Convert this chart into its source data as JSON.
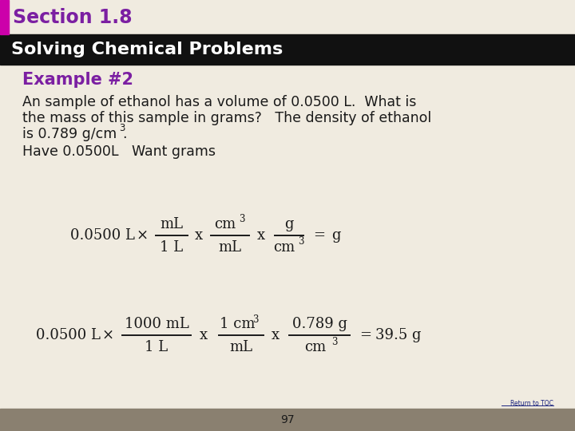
{
  "bg_color": "#f0ebe0",
  "header_bar_color": "#111111",
  "accent_bar_color": "#cc00aa",
  "section_title": "Section 1.8",
  "section_title_color": "#7b1fa2",
  "subtitle": "Solving Chemical Problems",
  "subtitle_color": "#ffffff",
  "example_title": "Example #2",
  "example_title_color": "#7b1fa2",
  "body_text_color": "#1a1a1a",
  "page_number": "97",
  "return_to_toc_color": "#1a237e",
  "footer_color": "#8a8070"
}
